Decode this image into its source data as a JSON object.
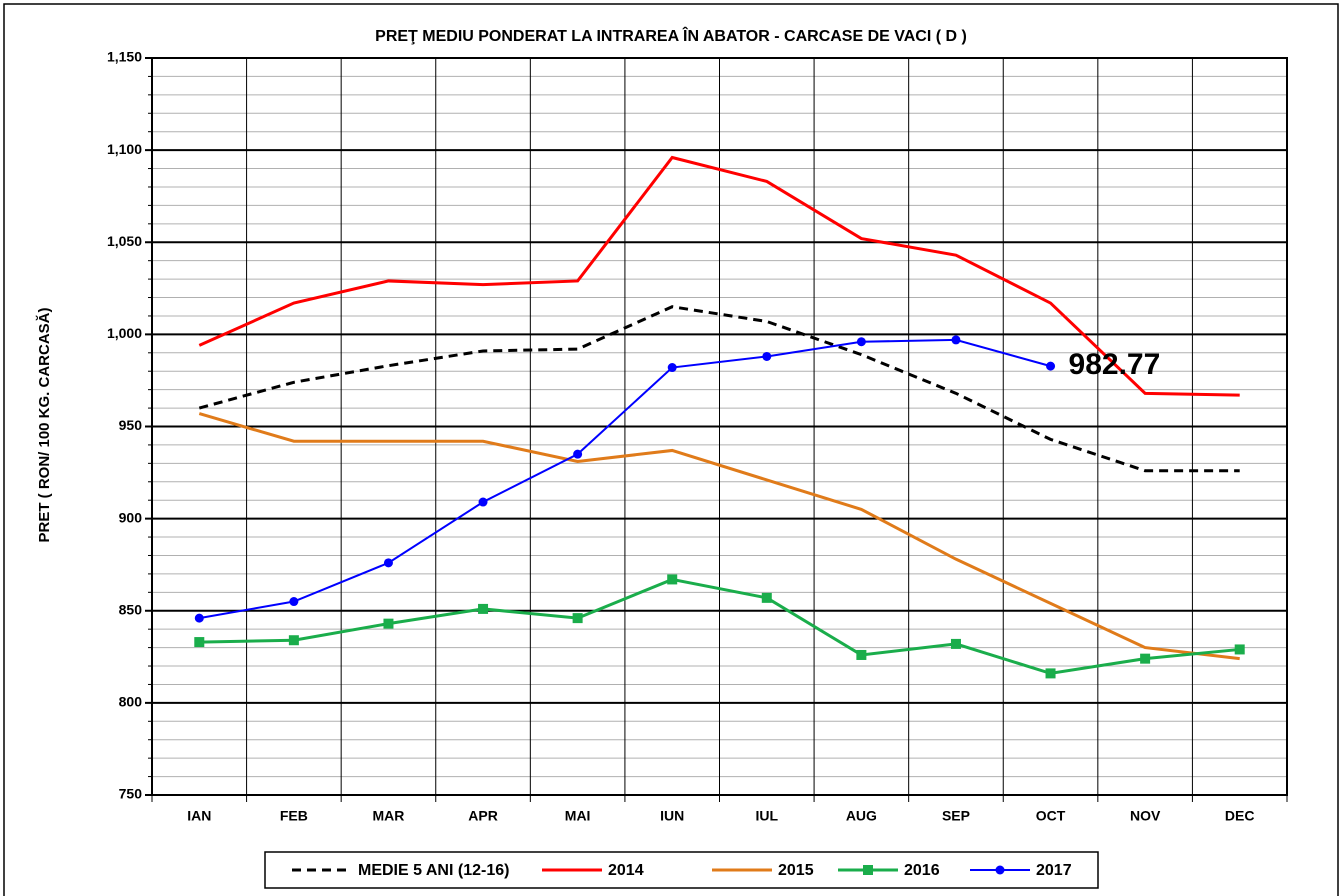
{
  "chart_data": {
    "type": "line",
    "title": "PREŢ MEDIU PONDERAT LA INTRAREA ÎN ABATOR - CARCASE DE VACI ( D )",
    "y_label": "PRET ( RON/ 100 KG. CARCASĂ)",
    "categories": [
      "IAN",
      "FEB",
      "MAR",
      "APR",
      "MAI",
      "IUN",
      "IUL",
      "AUG",
      "SEP",
      "OCT",
      "NOV",
      "DEC"
    ],
    "ylim": [
      750,
      1150
    ],
    "yticks": [
      750,
      800,
      850,
      900,
      950,
      {
        "value": 1000,
        "label": "1,000"
      },
      {
        "value": 1050,
        "label": "1,050"
      },
      {
        "value": 1100,
        "label": "1,100"
      },
      {
        "value": 1150,
        "label": "1,150"
      }
    ],
    "grid": true,
    "minor_grid": 10,
    "legend": "bottom",
    "series": [
      {
        "name": "MEDIE 5 ANI (12-16)",
        "color": "#000000",
        "dash": true,
        "marker": "none",
        "values": [
          960,
          974,
          983,
          991,
          992,
          1015,
          1007,
          989,
          968,
          943,
          926,
          926
        ]
      },
      {
        "name": "2014",
        "color": "#ff0000",
        "marker": "none",
        "values": [
          994,
          1017,
          1029,
          1027,
          1029,
          1096,
          1083,
          1052,
          1043,
          1017,
          968,
          967
        ]
      },
      {
        "name": "2015",
        "color": "#e07b1a",
        "marker": "none",
        "values": [
          957,
          942,
          942,
          942,
          931,
          937,
          921,
          905,
          878,
          854,
          830,
          824
        ]
      },
      {
        "name": "2016",
        "color": "#1aad4b",
        "marker": "square",
        "values": [
          833,
          834,
          843,
          851,
          846,
          867,
          857,
          826,
          832,
          816,
          824,
          829
        ]
      },
      {
        "name": "2017",
        "color": "#0000ff",
        "marker": "circle",
        "annotate_last": true,
        "values": [
          846,
          855,
          876,
          909,
          935,
          982,
          988,
          996,
          997,
          982.77,
          null,
          null
        ]
      }
    ]
  }
}
